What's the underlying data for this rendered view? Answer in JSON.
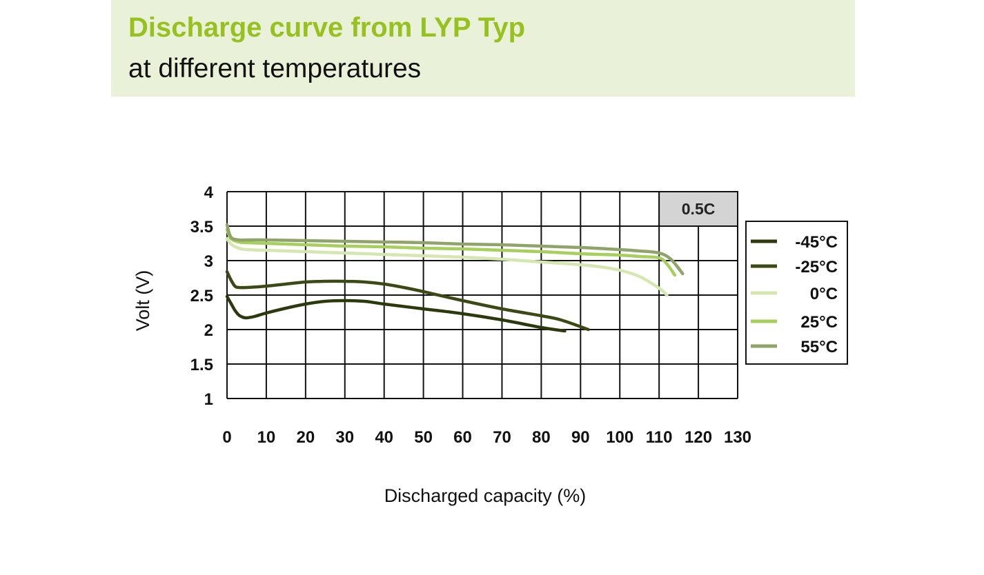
{
  "header": {
    "title": "Discharge curve from LYP Typ",
    "subtitle": "at different temperatures"
  },
  "colors": {
    "title_green": "#97c11f",
    "band": "#e9f2d8",
    "annotation_box": "#d4d4d4"
  },
  "chart_data": {
    "type": "line",
    "title": "Discharge curve from LYP Typ",
    "subtitle": "at different temperatures",
    "xlabel": "Discharged capacity (%)",
    "ylabel": "Volt (V)",
    "xlim": [
      0,
      130
    ],
    "ylim": [
      1,
      4
    ],
    "xticks": [
      "0",
      "10",
      "20",
      "30",
      "40",
      "50",
      "60",
      "70",
      "80",
      "90",
      "100",
      "110",
      "120",
      "130"
    ],
    "yticks": [
      "1",
      "1.5",
      "2",
      "2.5",
      "3",
      "3.5",
      "4"
    ],
    "grid": true,
    "legend_position": "right",
    "annotation": "0.5C",
    "series": [
      {
        "name": "-45°C",
        "color": "#2b3a0d",
        "x": [
          0,
          1,
          2,
          3,
          4,
          5,
          7,
          10,
          15,
          20,
          25,
          30,
          35,
          40,
          50,
          60,
          70,
          80,
          86
        ],
        "y": [
          2.48,
          2.38,
          2.28,
          2.21,
          2.18,
          2.17,
          2.19,
          2.24,
          2.31,
          2.37,
          2.41,
          2.42,
          2.41,
          2.37,
          2.3,
          2.23,
          2.14,
          2.03,
          1.98
        ]
      },
      {
        "name": "-25°C",
        "color": "#3b4a14",
        "x": [
          0,
          1,
          2,
          3,
          5,
          10,
          15,
          20,
          25,
          30,
          35,
          40,
          45,
          50,
          60,
          70,
          80,
          85,
          92
        ],
        "y": [
          2.84,
          2.72,
          2.63,
          2.61,
          2.61,
          2.63,
          2.66,
          2.69,
          2.7,
          2.7,
          2.69,
          2.66,
          2.61,
          2.55,
          2.42,
          2.3,
          2.2,
          2.14,
          2.0
        ]
      },
      {
        "name": "0°C",
        "color": "#d5e7b1",
        "x": [
          0,
          1,
          3,
          5,
          10,
          20,
          30,
          40,
          50,
          60,
          70,
          80,
          90,
          95,
          100,
          105,
          110,
          112
        ],
        "y": [
          3.32,
          3.24,
          3.18,
          3.16,
          3.15,
          3.13,
          3.11,
          3.09,
          3.07,
          3.05,
          3.02,
          2.98,
          2.94,
          2.91,
          2.86,
          2.77,
          2.6,
          2.5
        ]
      },
      {
        "name": "25°C",
        "color": "#a6cf5e",
        "x": [
          0,
          1,
          3,
          5,
          10,
          20,
          30,
          40,
          50,
          60,
          70,
          80,
          90,
          100,
          105,
          110,
          112,
          114
        ],
        "y": [
          3.45,
          3.32,
          3.27,
          3.26,
          3.25,
          3.23,
          3.21,
          3.2,
          3.18,
          3.17,
          3.15,
          3.13,
          3.1,
          3.08,
          3.06,
          3.04,
          2.95,
          2.79
        ]
      },
      {
        "name": "55°C",
        "color": "#8fa36b",
        "x": [
          0,
          1,
          3,
          5,
          10,
          20,
          30,
          40,
          50,
          60,
          70,
          80,
          90,
          100,
          105,
          110,
          113,
          116
        ],
        "y": [
          3.52,
          3.34,
          3.3,
          3.3,
          3.3,
          3.29,
          3.28,
          3.27,
          3.26,
          3.24,
          3.23,
          3.21,
          3.19,
          3.16,
          3.14,
          3.11,
          3.02,
          2.81
        ]
      }
    ]
  }
}
